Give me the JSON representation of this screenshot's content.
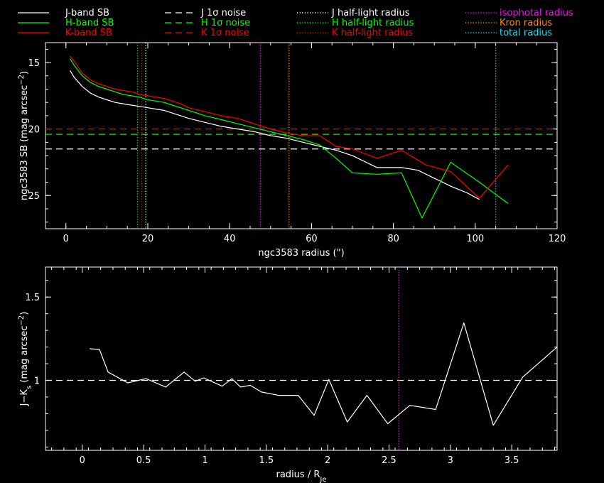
{
  "legend": [
    {
      "label": "J-band SB",
      "color": "#ffffff",
      "style": "solid"
    },
    {
      "label": "H-band SB",
      "color": "#00ff00",
      "style": "solid"
    },
    {
      "label": "K-band SB",
      "color": "#ff0000",
      "style": "solid"
    },
    {
      "label": "J 1σ noise",
      "color": "#ffffff",
      "style": "dashed"
    },
    {
      "label": "H 1σ noise",
      "color": "#00ff00",
      "style": "dashed"
    },
    {
      "label": "K 1σ noise",
      "color": "#ff0000",
      "style": "dashed"
    },
    {
      "label": "J half-light radius",
      "color": "#ffffff",
      "style": "dotted"
    },
    {
      "label": "H half-light radius",
      "color": "#00ff00",
      "style": "dotted"
    },
    {
      "label": "K half-light radius",
      "color": "#ff0000",
      "style": "dotted"
    },
    {
      "label": "isophotal radius",
      "color": "#ff00ff",
      "style": "dotted"
    },
    {
      "label": "Kron radius",
      "color": "#ff8c00",
      "style": "dotted"
    },
    {
      "label": "total radius",
      "color": "#00e5ee",
      "style": "dotted"
    }
  ],
  "chart_data": [
    {
      "type": "line",
      "xlabel": "ngc3583 radius (\")",
      "ylabel": "ngc3583 SB (mag arcsec",
      "ylabel_sup": "−2",
      "ylabel_end": ")",
      "xlim": [
        -5,
        120
      ],
      "ylim": [
        27.5,
        13.5
      ],
      "xticks": [
        0,
        20,
        40,
        60,
        80,
        100,
        120
      ],
      "xtick_labels": [
        "0",
        "20",
        "40",
        "60",
        "80",
        "100",
        "120"
      ],
      "yticks": [
        15,
        20,
        25
      ],
      "ytick_labels": [
        "15",
        "20",
        "25"
      ],
      "series": [
        {
          "name": "J-band SB",
          "color": "#ffffff",
          "x": [
            1,
            2,
            4,
            6,
            8,
            10,
            12,
            14,
            16,
            18,
            20,
            22,
            24,
            26,
            28,
            30,
            34,
            38,
            42,
            46,
            50,
            54,
            58,
            62,
            66,
            70,
            76,
            82,
            86,
            90,
            94,
            98,
            101
          ],
          "y": [
            15.6,
            16.1,
            16.8,
            17.3,
            17.6,
            17.8,
            18.0,
            18.1,
            18.2,
            18.3,
            18.4,
            18.5,
            18.6,
            18.8,
            19.0,
            19.2,
            19.5,
            19.8,
            20.0,
            20.2,
            20.5,
            20.7,
            21.0,
            21.3,
            21.6,
            22.0,
            22.9,
            22.9,
            23.1,
            23.7,
            24.3,
            24.8,
            25.3
          ]
        },
        {
          "name": "H-band SB",
          "color": "#00ff00",
          "x": [
            1,
            2,
            4,
            6,
            8,
            10,
            12,
            14,
            16,
            18,
            20,
            22,
            24,
            26,
            28,
            30,
            34,
            38,
            42,
            46,
            50,
            54,
            58,
            62,
            66,
            70,
            76,
            82,
            87,
            94,
            101,
            108
          ],
          "y": [
            14.7,
            15.2,
            16.0,
            16.5,
            16.8,
            17.0,
            17.2,
            17.4,
            17.5,
            17.6,
            17.8,
            17.9,
            18.0,
            18.2,
            18.4,
            18.6,
            19.0,
            19.3,
            19.6,
            19.9,
            20.2,
            20.5,
            20.8,
            21.2,
            22.2,
            23.3,
            23.4,
            23.3,
            26.7,
            22.5,
            24.0,
            25.6
          ]
        },
        {
          "name": "K-band SB",
          "color": "#ff0000",
          "x": [
            1,
            2,
            4,
            6,
            8,
            10,
            12,
            14,
            16,
            18,
            20,
            22,
            24,
            26,
            28,
            30,
            34,
            38,
            42,
            46,
            50,
            54,
            58,
            62,
            66,
            70,
            76,
            82,
            88,
            94,
            101,
            108
          ],
          "y": [
            14.5,
            14.9,
            15.8,
            16.3,
            16.6,
            16.8,
            17.0,
            17.1,
            17.2,
            17.4,
            17.5,
            17.6,
            17.7,
            17.9,
            18.1,
            18.4,
            18.7,
            19.0,
            19.2,
            19.6,
            20.0,
            20.3,
            20.5,
            20.5,
            21.3,
            21.5,
            22.2,
            21.6,
            22.7,
            23.2,
            25.2,
            22.7
          ]
        }
      ],
      "hlines": [
        {
          "name": "J 1σ noise",
          "y": 21.5,
          "color": "#ffffff"
        },
        {
          "name": "H 1σ noise",
          "y": 20.4,
          "color": "#00ff00"
        },
        {
          "name": "K 1σ noise",
          "y": 20.0,
          "color": "#ff0000"
        }
      ],
      "vlines": [
        {
          "name": "H half-light radius",
          "x": 17.5,
          "color": "#00ff00"
        },
        {
          "name": "K half-light radius",
          "x": 18.5,
          "color": "#ff0000"
        },
        {
          "name": "J half-light radius",
          "x": 19.5,
          "color": "#ffffff"
        },
        {
          "name": "isophotal radius",
          "x": 47.5,
          "color": "#ff00ff"
        },
        {
          "name": "Kron radius",
          "x": 54.5,
          "color": "#ff8c00"
        },
        {
          "name": "total radius",
          "x": 105,
          "color": "#00e5ee"
        }
      ]
    },
    {
      "type": "line",
      "xlabel": "radius / R",
      "xlabel_sub": "Je",
      "ylabel": "J−K",
      "ylabel_sub": "s",
      "ylabel_mid": " (mag arcsec",
      "ylabel_sup": "−2",
      "ylabel_end": ")",
      "xlim": [
        -0.3,
        3.87
      ],
      "ylim": [
        0.58,
        1.68
      ],
      "xticks": [
        0,
        0.5,
        1,
        1.5,
        2,
        2.5,
        3,
        3.5
      ],
      "xtick_labels": [
        "0",
        "0.5",
        "1",
        "1.5",
        "2",
        "2.5",
        "3",
        "3.5"
      ],
      "yticks": [
        1,
        1.5
      ],
      "ytick_labels": [
        "1",
        "1.5"
      ],
      "series": [
        {
          "name": "J−Ks",
          "color": "#ffffff",
          "x": [
            0.06,
            0.14,
            0.21,
            0.37,
            0.52,
            0.68,
            0.83,
            0.92,
            0.99,
            1.14,
            1.22,
            1.29,
            1.37,
            1.46,
            1.6,
            1.76,
            1.89,
            2.01,
            2.16,
            2.32,
            2.49,
            2.67,
            2.88,
            3.11,
            3.35,
            3.59,
            3.87
          ],
          "y": [
            1.19,
            1.185,
            1.05,
            0.985,
            1.01,
            0.96,
            1.05,
            0.995,
            1.015,
            0.965,
            1.01,
            0.96,
            0.97,
            0.93,
            0.91,
            0.91,
            0.79,
            1.005,
            0.75,
            0.91,
            0.74,
            0.85,
            0.825,
            1.345,
            0.73,
            1.02,
            1.2
          ]
        }
      ],
      "hlines": [
        {
          "name": "reference",
          "y": 1.0,
          "color": "#ffffaa"
        }
      ],
      "vlines": [
        {
          "name": "isophotal radius",
          "x": 2.58,
          "color": "#ff00ff"
        }
      ]
    }
  ]
}
